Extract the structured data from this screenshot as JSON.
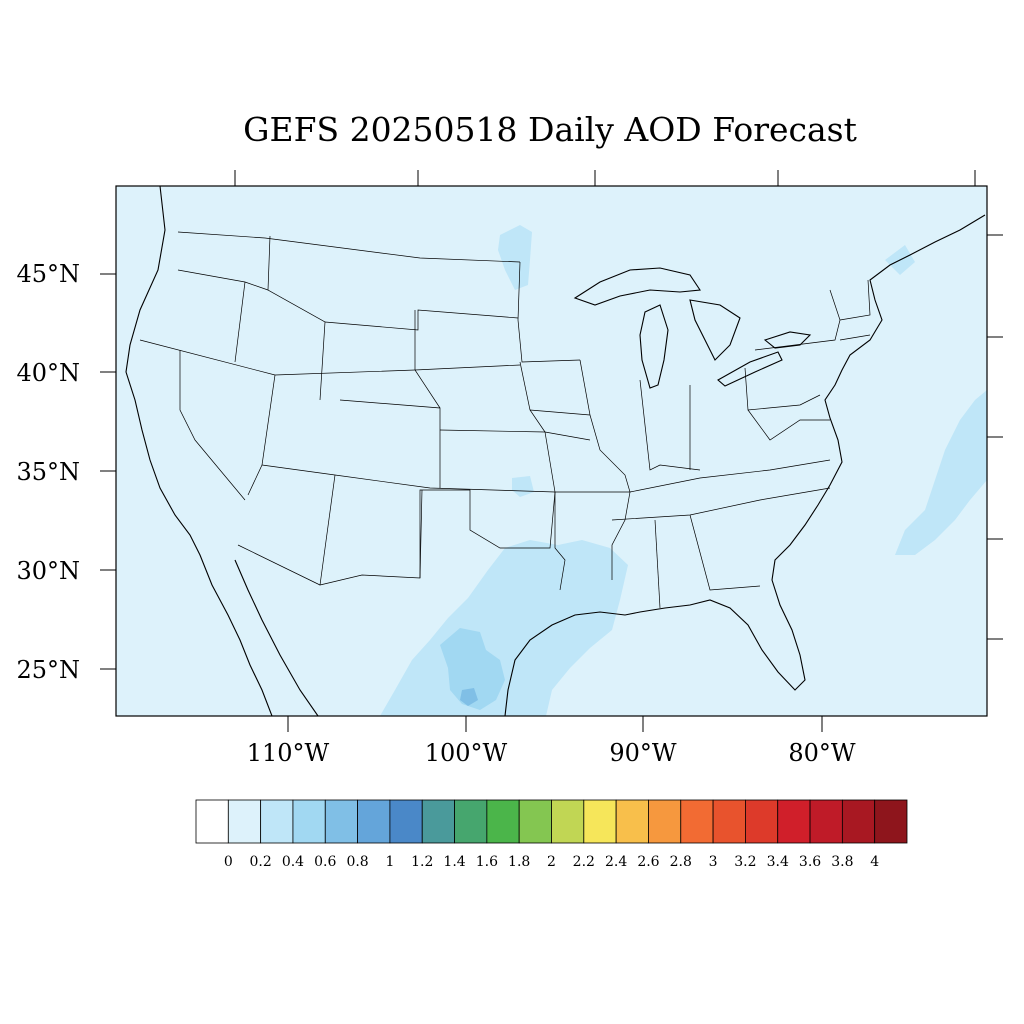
{
  "title": "GEFS 20250518 Daily AOD Forecast",
  "map": {
    "projection": "lambert-conformal",
    "region": "CONUS",
    "variable": "Aerosol Optical Depth",
    "background_value_range": [
      0.0,
      0.2
    ],
    "lat_ticks": [
      "45°N",
      "40°N",
      "35°N",
      "30°N",
      "25°N"
    ],
    "lon_ticks": [
      "110°W",
      "100°W",
      "90°W",
      "80°W"
    ],
    "features": [
      {
        "name": "texas-gulf-coast-plume",
        "value_range": [
          0.2,
          0.4
        ]
      },
      {
        "name": "south-texas-core",
        "value_range": [
          0.4,
          0.6
        ]
      },
      {
        "name": "atlantic-offshore-plume",
        "value_range": [
          0.2,
          0.4
        ]
      },
      {
        "name": "north-dakota-patch",
        "value_range": [
          0.2,
          0.4
        ]
      },
      {
        "name": "oklahoma-patch",
        "value_range": [
          0.2,
          0.4
        ]
      }
    ]
  },
  "colorbar": {
    "labels": [
      "0",
      "0.2",
      "0.4",
      "0.6",
      "0.8",
      "1",
      "1.2",
      "1.4",
      "1.6",
      "1.8",
      "2",
      "2.2",
      "2.4",
      "2.6",
      "2.8",
      "3",
      "3.2",
      "3.4",
      "3.6",
      "3.8",
      "4"
    ],
    "colors": [
      "#ffffff",
      "#ddf2fb",
      "#bfe6f8",
      "#a1d8f2",
      "#80bfe6",
      "#64a5da",
      "#4a88c8",
      "#4a9a9b",
      "#46a66e",
      "#4bb54a",
      "#84c651",
      "#c1d654",
      "#f6e65a",
      "#f8bf4b",
      "#f6983e",
      "#f26b33",
      "#e8532d",
      "#dd3a2a",
      "#d01f2a",
      "#bf1b28",
      "#a81822",
      "#8e151c"
    ]
  },
  "chart_data": {
    "type": "heatmap",
    "title": "GEFS 20250518 Daily AOD Forecast",
    "xlabel": "",
    "ylabel": "",
    "x_ticks": [
      "110°W",
      "100°W",
      "90°W",
      "80°W"
    ],
    "y_ticks": [
      "45°N",
      "40°N",
      "35°N",
      "30°N",
      "25°N"
    ],
    "color_levels": [
      0,
      0.2,
      0.4,
      0.6,
      0.8,
      1,
      1.2,
      1.4,
      1.6,
      1.8,
      2,
      2.2,
      2.4,
      2.6,
      2.8,
      3,
      3.2,
      3.4,
      3.6,
      3.8,
      4
    ],
    "regions": [
      {
        "region": "CONUS background",
        "aod_range": [
          0.0,
          0.2
        ]
      },
      {
        "region": "Texas Gulf coast / NE Mexico",
        "aod_range": [
          0.2,
          0.4
        ]
      },
      {
        "region": "South Texas core",
        "aod_range": [
          0.4,
          0.6
        ]
      },
      {
        "region": "Atlantic offshore (east of Carolinas)",
        "aod_range": [
          0.2,
          0.4
        ]
      },
      {
        "region": "North Dakota / Minnesota border",
        "aod_range": [
          0.2,
          0.4
        ]
      },
      {
        "region": "Oklahoma",
        "aod_range": [
          0.2,
          0.4
        ]
      }
    ],
    "legend": "bottom"
  }
}
